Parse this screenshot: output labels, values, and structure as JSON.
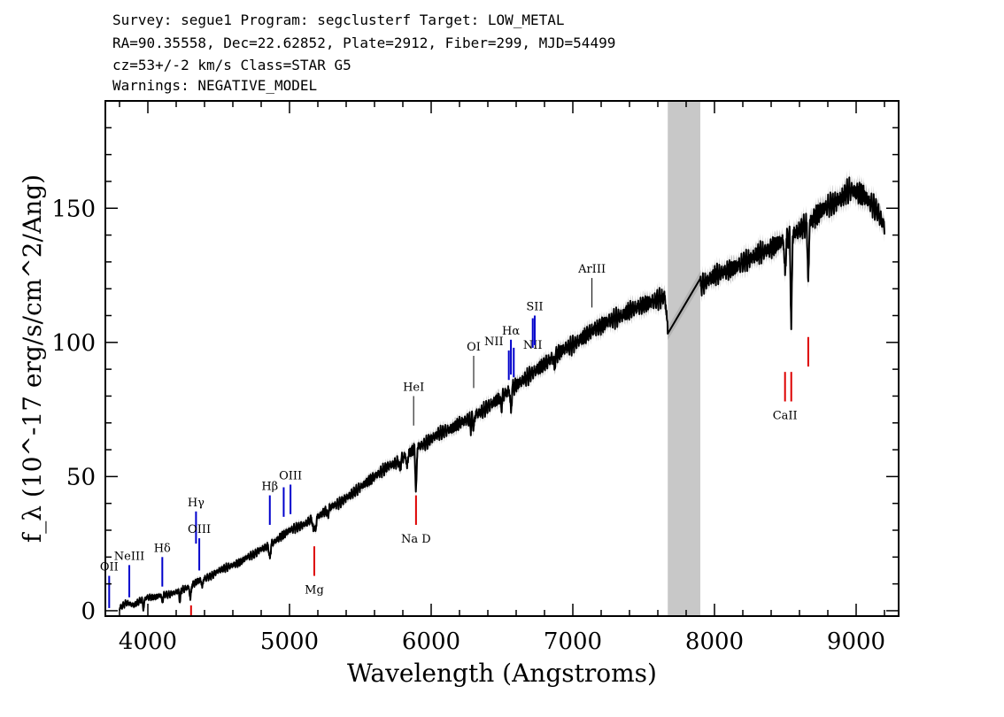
{
  "header": {
    "line1": "Survey: segue1 Program: segclusterf Target: LOW_METAL",
    "line2": "RA=90.35558, Dec=22.62852, Plate=2912, Fiber=299, MJD=54499",
    "line3": "cz=53+/-2 km/s Class=STAR G5",
    "line4": "Warnings: NEGATIVE_MODEL"
  },
  "chart_data": {
    "type": "line",
    "xlabel": "Wavelength (Angstroms)",
    "ylabel": "f_λ (10^-17 erg/s/cm^2/Ang)",
    "xlim": [
      3700,
      9300
    ],
    "ylim": [
      -2,
      190
    ],
    "x_ticks": [
      4000,
      5000,
      6000,
      7000,
      8000,
      9000
    ],
    "y_ticks": [
      0,
      50,
      100,
      150
    ],
    "masked_region": [
      7670,
      7900
    ],
    "colors": {
      "spectrum": "#000000",
      "error_band": "#b4b4b4",
      "mask": "#c8c8c8",
      "emission": "#0000cc",
      "absorption": "#dd0000",
      "sky": "#000000"
    },
    "series": [
      {
        "x": [
          3800,
          3850,
          3900,
          3950,
          4000,
          4050,
          4100,
          4150,
          4200,
          4250,
          4300,
          4350,
          4400,
          4450,
          4500,
          4550,
          4600,
          4650,
          4700,
          4750,
          4800,
          4850,
          4900,
          4950,
          5000,
          5050,
          5100,
          5150,
          5200,
          5250,
          5300,
          5350,
          5400,
          5450,
          5500,
          5550,
          5600,
          5650,
          5700,
          5750,
          5800,
          5850,
          5900,
          5950,
          6000,
          6050,
          6100,
          6150,
          6200,
          6250,
          6300,
          6350,
          6400,
          6450,
          6500,
          6550,
          6600,
          6650,
          6700,
          6750,
          6800,
          6850,
          6900,
          6950,
          7000,
          7050,
          7100,
          7150,
          7200,
          7250,
          7300,
          7350,
          7400,
          7450,
          7500,
          7550,
          7600,
          7650,
          7670,
          7900,
          7950,
          8000,
          8050,
          8100,
          8150,
          8200,
          8250,
          8300,
          8350,
          8400,
          8450,
          8500,
          8550,
          8600,
          8650,
          8700,
          8750,
          8800,
          8850,
          8900,
          8950,
          9000,
          9050,
          9100,
          9150,
          9200
        ],
        "y": [
          1,
          3,
          2,
          4,
          5,
          5,
          6,
          6,
          7,
          8,
          9,
          11,
          12,
          13,
          15,
          16,
          17,
          18,
          20,
          21,
          23,
          24,
          26,
          28,
          30,
          31,
          32,
          34,
          35,
          37,
          39,
          40,
          42,
          44,
          46,
          48,
          50,
          52,
          54,
          55,
          57,
          59,
          61,
          62,
          64,
          66,
          67,
          68,
          70,
          71,
          73,
          74,
          76,
          78,
          80,
          82,
          84,
          86,
          88,
          90,
          92,
          94,
          96,
          98,
          99,
          101,
          103,
          105,
          106,
          108,
          109,
          110,
          112,
          113,
          114,
          115,
          116,
          117,
          105,
          121,
          123,
          125,
          126,
          127,
          128,
          130,
          131,
          133,
          134,
          135,
          137,
          138,
          140,
          142,
          144,
          146,
          149,
          151,
          152,
          154,
          157,
          156,
          155,
          152,
          149,
          143
        ]
      }
    ],
    "absorption_features": [
      {
        "x": 3969,
        "depth": 4
      },
      {
        "x": 4102,
        "depth": 3
      },
      {
        "x": 4226,
        "depth": 4
      },
      {
        "x": 4300,
        "depth": 5
      },
      {
        "x": 4384,
        "depth": 3
      },
      {
        "x": 4861,
        "depth": 6
      },
      {
        "x": 5168,
        "depth": 5
      },
      {
        "x": 5183,
        "depth": 6
      },
      {
        "x": 5270,
        "depth": 3
      },
      {
        "x": 5780,
        "depth": 4
      },
      {
        "x": 5830,
        "depth": 5
      },
      {
        "x": 5893,
        "depth": 18
      },
      {
        "x": 6280,
        "depth": 4
      },
      {
        "x": 6300,
        "depth": 6
      },
      {
        "x": 6495,
        "depth": 5
      },
      {
        "x": 6563,
        "depth": 9
      },
      {
        "x": 6870,
        "depth": 4
      },
      {
        "x": 8498,
        "depth": 14
      },
      {
        "x": 8542,
        "depth": 36
      },
      {
        "x": 8662,
        "depth": 24
      }
    ],
    "lines": [
      {
        "name": "OII",
        "x": 3727,
        "kind": "emission",
        "y0": 1,
        "y1": 13,
        "label_y": 13,
        "label_side": "above"
      },
      {
        "name": "NeIII",
        "x": 3869,
        "kind": "emission",
        "y0": 5,
        "y1": 17,
        "label_y": 17,
        "label_side": "above"
      },
      {
        "name": "Hδ",
        "x": 4102,
        "kind": "emission",
        "y0": 9,
        "y1": 20,
        "label_y": 20,
        "label_side": "above"
      },
      {
        "name": "Hγ",
        "x": 4340,
        "kind": "emission",
        "y0": 25,
        "y1": 37,
        "label_y": 37,
        "label_side": "above"
      },
      {
        "name": "OIII",
        "x": 4363,
        "kind": "emission",
        "y0": 15,
        "y1": 27,
        "label_y": 27,
        "label_side": "above"
      },
      {
        "name": "Hβ",
        "x": 4861,
        "kind": "emission",
        "y0": 32,
        "y1": 43,
        "label_y": 43,
        "label_side": "above"
      },
      {
        "name": "OIII",
        "x": 5007,
        "kind": "emission",
        "y0": 36,
        "y1": 47,
        "label_y": 47,
        "label_side": "above"
      },
      {
        "name": "OIII",
        "x": 4959,
        "kind": "emission",
        "y0": 35,
        "y1": 46,
        "label_y": 46,
        "label_side": "none"
      },
      {
        "name": "HeI",
        "x": 5876,
        "kind": "sky",
        "y0": 69,
        "y1": 80,
        "label_y": 80,
        "label_side": "above"
      },
      {
        "name": "OI",
        "x": 6300,
        "kind": "sky",
        "y0": 83,
        "y1": 95,
        "label_y": 95,
        "label_side": "above"
      },
      {
        "name": "NII",
        "x": 6548,
        "kind": "emission",
        "y0": 86,
        "y1": 97,
        "label_y": 97,
        "label_side": "above-left"
      },
      {
        "name": "Hα",
        "x": 6563,
        "kind": "emission",
        "y0": 88,
        "y1": 101,
        "label_y": 101,
        "label_side": "above"
      },
      {
        "name": "NII",
        "x": 6583,
        "kind": "emission",
        "y0": 87,
        "y1": 98,
        "label_y": 98,
        "label_side": "none"
      },
      {
        "name": "NII",
        "x": 6717,
        "kind": "emission",
        "y0": 98,
        "y1": 109,
        "label_y": 99,
        "label_side": "over"
      },
      {
        "name": "SII",
        "x": 6731,
        "kind": "emission",
        "y0": 99,
        "y1": 110,
        "label_y": 110,
        "label_side": "above"
      },
      {
        "name": "ArIII",
        "x": 7135,
        "kind": "sky",
        "y0": 113,
        "y1": 124,
        "label_y": 124,
        "label_side": "above"
      },
      {
        "name": "Na D",
        "x": 5893,
        "kind": "absorption",
        "y0": 32,
        "y1": 43,
        "label_y": 32,
        "label_side": "below"
      },
      {
        "name": "Mg",
        "x": 5175,
        "kind": "absorption",
        "y0": 13,
        "y1": 24,
        "label_y": 13,
        "label_side": "below"
      },
      {
        "name": "",
        "x": 4305,
        "kind": "absorption",
        "y0": -2,
        "y1": 2,
        "label_y": 0,
        "label_side": "none"
      },
      {
        "name": "CaII",
        "x": 8498,
        "kind": "absorption",
        "y0": 78,
        "y1": 89,
        "label_y": 78,
        "label_side": "below"
      },
      {
        "name": "",
        "x": 8542,
        "kind": "absorption",
        "y0": 78,
        "y1": 89,
        "label_y": 78,
        "label_side": "none"
      },
      {
        "name": "",
        "x": 8662,
        "kind": "absorption",
        "y0": 91,
        "y1": 102,
        "label_y": 91,
        "label_side": "none"
      }
    ]
  }
}
